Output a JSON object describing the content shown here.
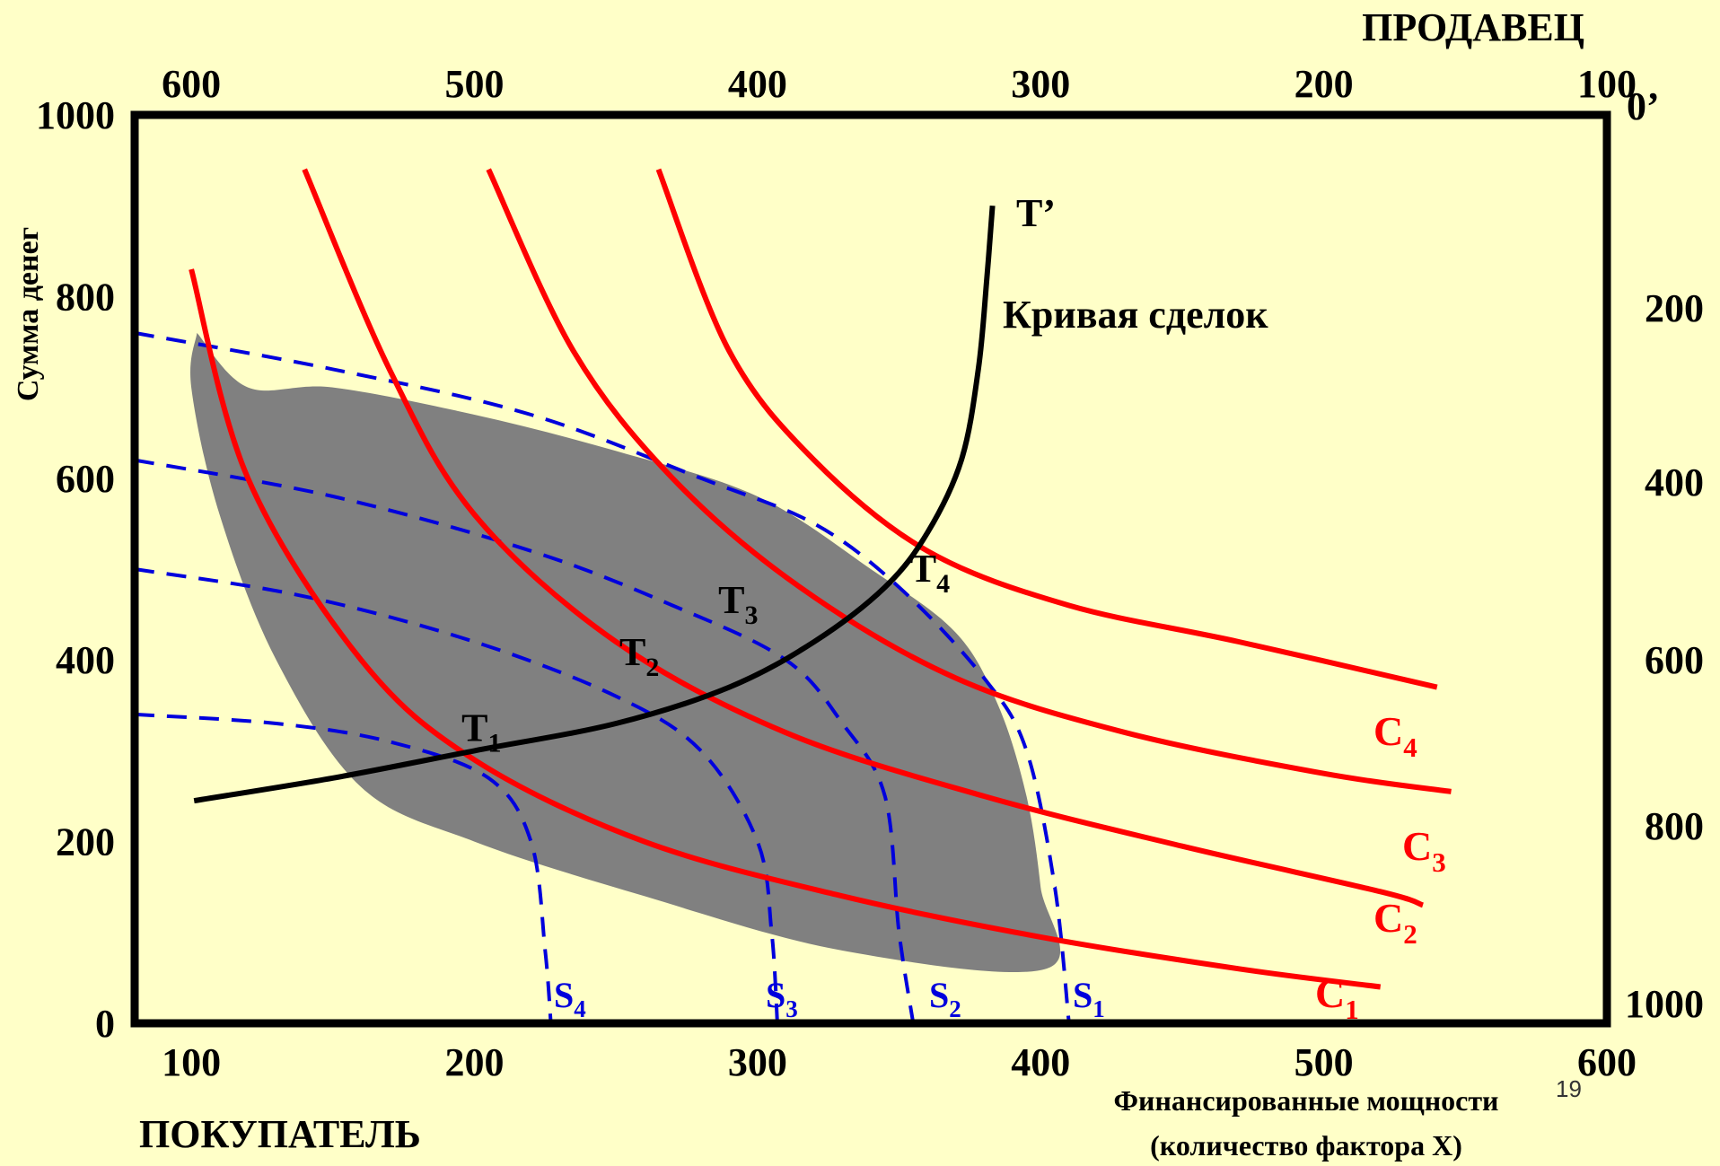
{
  "chart_data": {
    "type": "line",
    "title": "",
    "top_title": "ПРОДАВЕЦ",
    "bottom_title": "ПОКУПАТЕЛЬ",
    "ylabel": "Сумма денег",
    "xlabel_line1": "Финансированные мощности",
    "xlabel_line2": "(количество фактора Х)",
    "page_number": "19",
    "x_bottom": {
      "range": [
        80,
        600
      ],
      "ticks": [
        100,
        200,
        300,
        400,
        500,
        600
      ]
    },
    "y_left": {
      "range": [
        0,
        1000
      ],
      "ticks": [
        0,
        200,
        400,
        600,
        800,
        1000
      ]
    },
    "x_top_ticks": [
      "600",
      "500",
      "400",
      "300",
      "200",
      "100"
    ],
    "y_right_ticks": [
      "0’",
      "200",
      "400",
      "600",
      "800",
      "1000"
    ],
    "colors": {
      "indifference": "#ff0000",
      "dashed": "#0000dd",
      "contract": "#000000",
      "shade": "#808080",
      "frame": "#000000"
    },
    "contract_curve": {
      "name": "Кривая сделок",
      "end_label": "T’",
      "points": [
        [
          101,
          245
        ],
        [
          150,
          270
        ],
        [
          200,
          300
        ],
        [
          250,
          330
        ],
        [
          290,
          370
        ],
        [
          320,
          420
        ],
        [
          345,
          480
        ],
        [
          360,
          540
        ],
        [
          372,
          620
        ],
        [
          378,
          720
        ],
        [
          381,
          820
        ],
        [
          383,
          900
        ]
      ]
    },
    "red_curves": [
      {
        "label": "C1",
        "label_main": "C",
        "label_sub": "1",
        "points": [
          [
            100,
            830
          ],
          [
            120,
            600
          ],
          [
            160,
            400
          ],
          [
            200,
            290
          ],
          [
            260,
            200
          ],
          [
            330,
            140
          ],
          [
            400,
            95
          ],
          [
            470,
            60
          ],
          [
            520,
            40
          ]
        ]
      },
      {
        "label": "C2",
        "label_main": "C",
        "label_sub": "2",
        "points": [
          [
            140,
            940
          ],
          [
            170,
            720
          ],
          [
            200,
            560
          ],
          [
            250,
            420
          ],
          [
            310,
            320
          ],
          [
            380,
            250
          ],
          [
            450,
            195
          ],
          [
            520,
            145
          ],
          [
            535,
            130
          ]
        ]
      },
      {
        "label": "C3",
        "label_main": "C",
        "label_sub": "3",
        "points": [
          [
            205,
            940
          ],
          [
            235,
            740
          ],
          [
            270,
            600
          ],
          [
            315,
            480
          ],
          [
            370,
            380
          ],
          [
            430,
            320
          ],
          [
            500,
            275
          ],
          [
            545,
            255
          ]
        ]
      },
      {
        "label": "C4",
        "label_main": "C",
        "label_sub": "4",
        "points": [
          [
            265,
            940
          ],
          [
            290,
            740
          ],
          [
            320,
            620
          ],
          [
            360,
            520
          ],
          [
            410,
            460
          ],
          [
            470,
            420
          ],
          [
            540,
            370
          ]
        ]
      }
    ],
    "dashed_curves": [
      {
        "label": "S1",
        "label_main": "S",
        "label_sub": "1",
        "points": [
          [
            80,
            760
          ],
          [
            150,
            720
          ],
          [
            220,
            670
          ],
          [
            280,
            600
          ],
          [
            320,
            550
          ],
          [
            350,
            480
          ],
          [
            380,
            380
          ],
          [
            395,
            300
          ],
          [
            405,
            150
          ],
          [
            410,
            0
          ]
        ]
      },
      {
        "label": "S2",
        "label_main": "S",
        "label_sub": "2",
        "points": [
          [
            80,
            620
          ],
          [
            150,
            580
          ],
          [
            220,
            520
          ],
          [
            270,
            460
          ],
          [
            310,
            400
          ],
          [
            330,
            330
          ],
          [
            345,
            250
          ],
          [
            350,
            100
          ],
          [
            355,
            0
          ]
        ]
      },
      {
        "label": "S3",
        "label_main": "S",
        "label_sub": "3",
        "points": [
          [
            80,
            500
          ],
          [
            140,
            470
          ],
          [
            200,
            420
          ],
          [
            250,
            360
          ],
          [
            280,
            300
          ],
          [
            300,
            200
          ],
          [
            305,
            100
          ],
          [
            307,
            0
          ]
        ]
      },
      {
        "label": "S4",
        "label_main": "S",
        "label_sub": "4",
        "points": [
          [
            80,
            340
          ],
          [
            130,
            330
          ],
          [
            170,
            310
          ],
          [
            205,
            270
          ],
          [
            220,
            200
          ],
          [
            225,
            80
          ],
          [
            227,
            0
          ]
        ]
      }
    ],
    "shade_polygon": [
      [
        102,
        760
      ],
      [
        120,
        700
      ],
      [
        150,
        700
      ],
      [
        200,
        670
      ],
      [
        250,
        630
      ],
      [
        300,
        580
      ],
      [
        340,
        500
      ],
      [
        370,
        430
      ],
      [
        385,
        350
      ],
      [
        395,
        250
      ],
      [
        400,
        150
      ],
      [
        402,
        60
      ],
      [
        330,
        80
      ],
      [
        260,
        140
      ],
      [
        200,
        200
      ],
      [
        160,
        260
      ],
      [
        130,
        400
      ],
      [
        110,
        560
      ],
      [
        100,
        700
      ]
    ],
    "points": [
      {
        "main": "T",
        "sub": "1",
        "x": 198,
        "y": 295
      },
      {
        "main": "T",
        "sub": "2",
        "x": 262,
        "y": 345
      },
      {
        "main": "T",
        "sub": "3",
        "x": 302,
        "y": 410
      },
      {
        "main": "T",
        "sub": "4",
        "x": 345,
        "y": 480
      }
    ]
  }
}
